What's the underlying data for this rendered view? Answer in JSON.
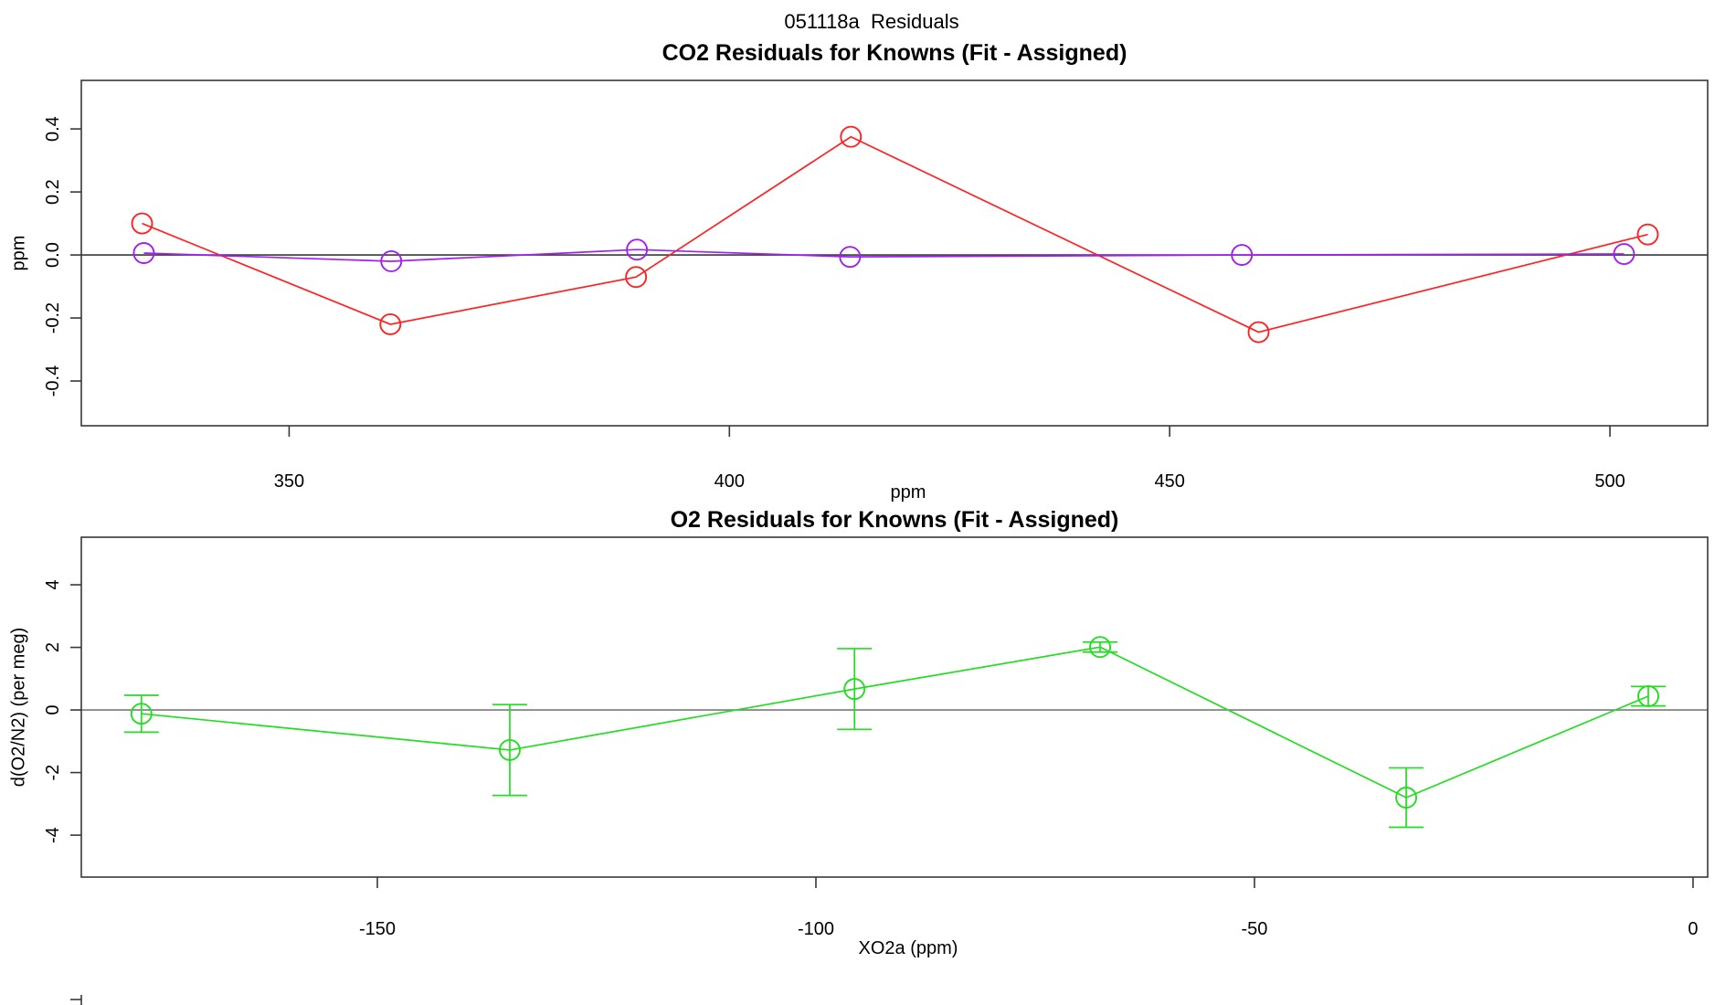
{
  "page": {
    "main_title": "051118a  Residuals",
    "background": "#ffffff",
    "text_color": "#000000",
    "frame_color": "#383838"
  },
  "chart_data": [
    {
      "type": "line",
      "title": "CO2 Residuals for Knowns (Fit - Assigned)",
      "xlabel": "ppm",
      "ylabel": "ppm",
      "xlim": [
        326.4,
        511.1
      ],
      "ylim": [
        -0.542,
        0.554
      ],
      "grid": false,
      "legend": "none",
      "xticks": [
        350,
        400,
        450,
        500
      ],
      "xtick_labels": [
        "350",
        "400",
        "450",
        "500"
      ],
      "yticks": [
        -0.4,
        -0.2,
        0.0,
        0.2,
        0.4
      ],
      "ytick_labels": [
        "-0.4",
        "-0.2",
        "0.0",
        "0.2",
        "0.4"
      ],
      "zero_line": {
        "y": 0,
        "color": "#3a3a3a"
      },
      "series": [
        {
          "name": "co2-residual-fit-minus-assigned",
          "color": "#ff2222",
          "marker": "open-circle",
          "points": [
            [
              333.3,
              0.1
            ],
            [
              361.5,
              -0.22
            ],
            [
              389.4,
              -0.07
            ],
            [
              413.8,
              0.375
            ],
            [
              460.1,
              -0.245
            ],
            [
              504.3,
              0.065
            ]
          ]
        },
        {
          "name": "co2-residual-reference",
          "color": "#a020f0",
          "marker": "open-circle",
          "points": [
            [
              333.5,
              0.006
            ],
            [
              361.6,
              -0.02
            ],
            [
              389.5,
              0.017
            ],
            [
              413.7,
              -0.006
            ],
            [
              458.2,
              0.0
            ],
            [
              501.6,
              0.003
            ]
          ]
        }
      ]
    },
    {
      "type": "line-errorbar",
      "title": "O2 Residuals for Knowns (Fit - Assigned)",
      "xlabel": "XO2a (ppm)",
      "ylabel": "d(O2/N2) (per meg)",
      "xlim": [
        -183.75,
        1.67
      ],
      "ylim": [
        -5.34,
        5.52
      ],
      "grid": false,
      "legend": "none",
      "xticks": [
        -150,
        -100,
        -50,
        0
      ],
      "xtick_labels": [
        "-150",
        "-100",
        "-50",
        "0"
      ],
      "yticks": [
        -4,
        -2,
        0,
        2,
        4
      ],
      "ytick_labels": [
        "-4",
        "-2",
        "0",
        "2",
        "4"
      ],
      "zero_line": {
        "y": 0,
        "color": "#7a7a7a"
      },
      "series": [
        {
          "name": "o2-residual-fit-minus-assigned",
          "color": "#22dd22",
          "marker": "open-circle",
          "points": [
            [
              -176.9,
              -0.12
            ],
            [
              -134.9,
              -1.28
            ],
            [
              -95.6,
              0.67
            ],
            [
              -67.6,
              2.01
            ],
            [
              -32.7,
              -2.8
            ],
            [
              -5.1,
              0.44
            ]
          ],
          "errors": [
            0.59,
            1.45,
            1.29,
            0.16,
            0.95,
            0.31
          ]
        }
      ]
    }
  ]
}
